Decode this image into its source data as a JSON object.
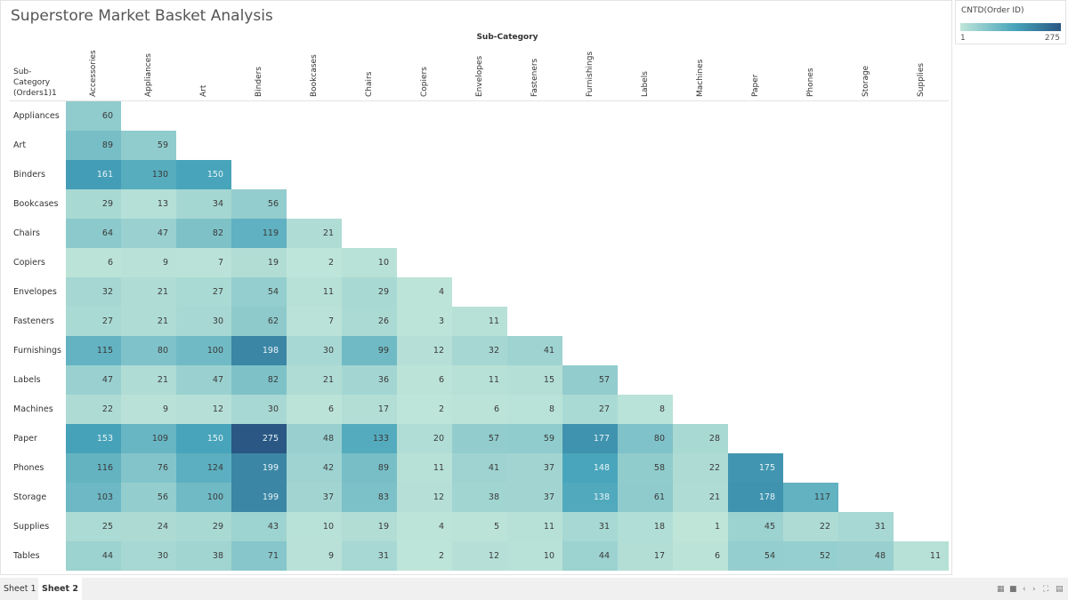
{
  "title": "Superstore Market Basket Analysis",
  "legend": {
    "title": "CNTD(Order ID)",
    "min": "1",
    "max": "275",
    "color_low": "#bfe5d9",
    "color_mid": "#46a3ba",
    "color_high": "#2a5783"
  },
  "tabs": [
    {
      "label": "Sheet 1",
      "active": false
    },
    {
      "label": "Sheet 2",
      "active": true
    }
  ],
  "controls": [
    "grid-view-icon",
    "single-view-icon",
    "prev-icon",
    "next-icon",
    "fullscreen-icon",
    "present-icon"
  ],
  "chart_data": {
    "type": "heatmap",
    "title": "Superstore Market Basket Analysis",
    "xlabel": "Sub-Category",
    "ylabel": "Sub-Category (Orders1)1",
    "x_categories": [
      "Accessories",
      "Appliances",
      "Art",
      "Binders",
      "Bookcases",
      "Chairs",
      "Copiers",
      "Envelopes",
      "Fasteners",
      "Furnishings",
      "Labels",
      "Machines",
      "Paper",
      "Phones",
      "Storage",
      "Supplies"
    ],
    "y_categories": [
      "Appliances",
      "Art",
      "Binders",
      "Bookcases",
      "Chairs",
      "Copiers",
      "Envelopes",
      "Fasteners",
      "Furnishings",
      "Labels",
      "Machines",
      "Paper",
      "Phones",
      "Storage",
      "Supplies",
      "Tables"
    ],
    "values": [
      [
        60
      ],
      [
        89,
        59
      ],
      [
        161,
        130,
        150
      ],
      [
        29,
        13,
        34,
        56
      ],
      [
        64,
        47,
        82,
        119,
        21
      ],
      [
        6,
        9,
        7,
        19,
        2,
        10
      ],
      [
        32,
        21,
        27,
        54,
        11,
        29,
        4
      ],
      [
        27,
        21,
        30,
        62,
        7,
        26,
        3,
        11
      ],
      [
        115,
        80,
        100,
        198,
        30,
        99,
        12,
        32,
        41
      ],
      [
        47,
        21,
        47,
        82,
        21,
        36,
        6,
        11,
        15,
        57
      ],
      [
        22,
        9,
        12,
        30,
        6,
        17,
        2,
        6,
        8,
        27,
        8
      ],
      [
        153,
        109,
        150,
        275,
        48,
        133,
        20,
        57,
        59,
        177,
        80,
        28
      ],
      [
        116,
        76,
        124,
        199,
        42,
        89,
        11,
        41,
        37,
        148,
        58,
        22,
        175
      ],
      [
        103,
        56,
        100,
        199,
        37,
        83,
        12,
        38,
        37,
        138,
        61,
        21,
        178,
        117
      ],
      [
        25,
        24,
        29,
        43,
        10,
        19,
        4,
        5,
        11,
        31,
        18,
        1,
        45,
        22,
        31
      ],
      [
        44,
        30,
        38,
        71,
        9,
        31,
        2,
        12,
        10,
        44,
        17,
        6,
        54,
        52,
        48,
        11
      ]
    ],
    "color_range": [
      1,
      275
    ]
  }
}
